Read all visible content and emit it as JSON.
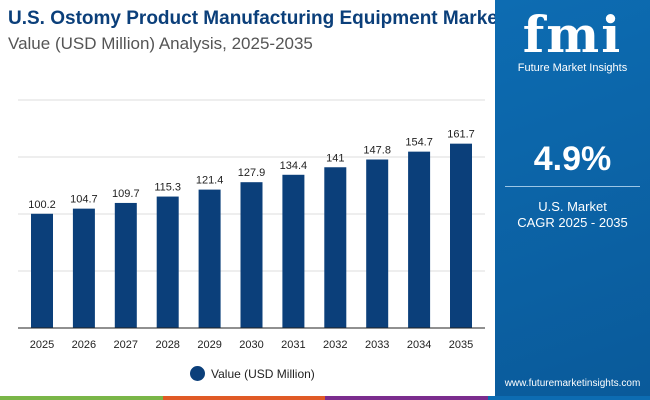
{
  "chart_data": {
    "type": "bar",
    "title": "U.S. Ostomy Product Manufacturing Equipment Market",
    "subtitle": "Value (USD Million) Analysis, 2025-2035",
    "categories": [
      "2025",
      "2026",
      "2027",
      "2028",
      "2029",
      "2030",
      "2031",
      "2032",
      "2033",
      "2034",
      "2035"
    ],
    "series": [
      {
        "name": "Value (USD Million)",
        "values": [
          100.2,
          104.7,
          109.7,
          115.3,
          121.4,
          127.9,
          134.4,
          141,
          147.8,
          154.7,
          161.7
        ]
      }
    ],
    "ylim": [
      0,
      200
    ],
    "grid": true,
    "legend": "bottom",
    "bar_color": "#0b3f7a"
  },
  "panel": {
    "logo_text": "fmi",
    "logo_sub": "Future Market Insights",
    "cagr": "4.9%",
    "label1": "U.S. Market",
    "label2": "CAGR 2025 - 2035",
    "url": "www.futuremarketinsights.com",
    "color": "#0d6cb2"
  },
  "bottom_colors": [
    "#7ab648",
    "#e05a26",
    "#7b2d8e",
    "#0d6cb2"
  ]
}
